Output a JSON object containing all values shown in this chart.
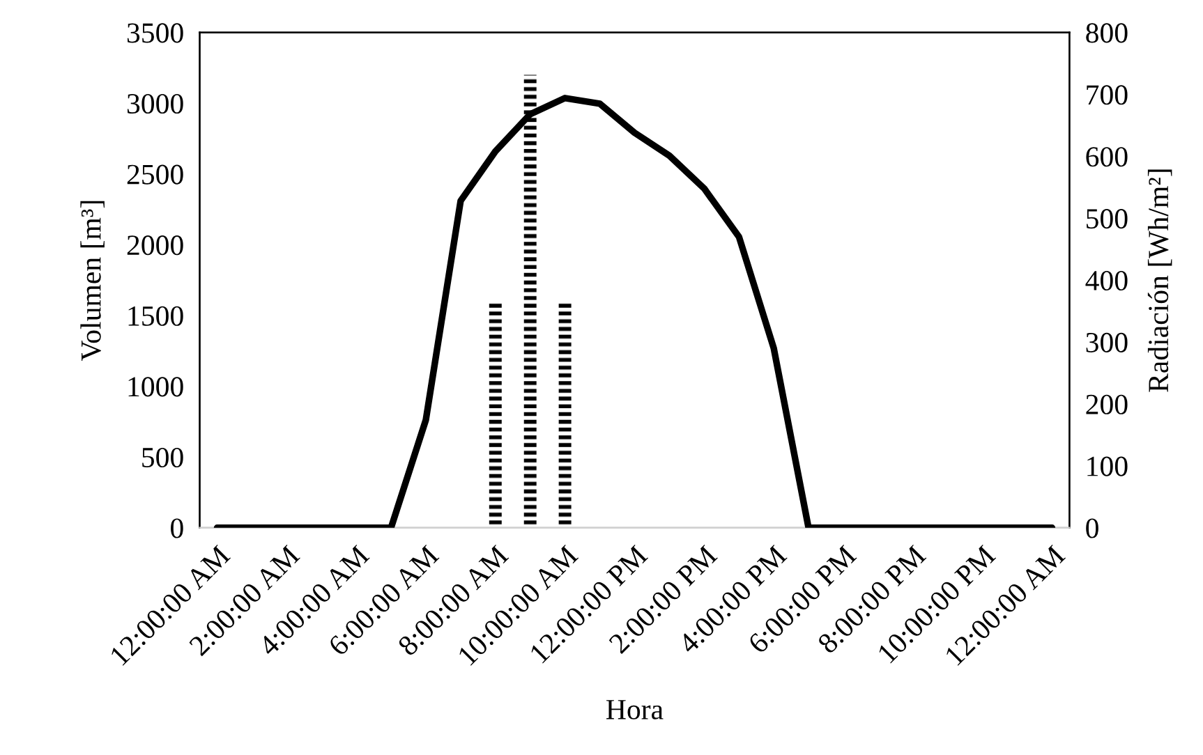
{
  "chart_data": {
    "type": "bar",
    "xlabel": "Hora",
    "ylabel": "Volumen [m³]",
    "y2label": "Radiación [Wh/m²]",
    "categories": [
      "12:00:00 AM",
      null,
      "2:00:00 AM",
      null,
      "4:00:00 AM",
      null,
      "6:00:00 AM",
      null,
      "8:00:00 AM",
      null,
      "10:00:00 AM",
      null,
      "12:00:00 PM",
      null,
      "2:00:00 PM",
      null,
      "4:00:00 PM",
      null,
      "6:00:00 PM",
      null,
      "8:00:00 PM",
      null,
      "10:00:00 PM",
      null,
      "12:00:00 AM"
    ],
    "ylim": [
      0,
      3500
    ],
    "yticks": [
      0,
      500,
      1000,
      1500,
      2000,
      2500,
      3000,
      3500
    ],
    "y2lim": [
      0,
      800
    ],
    "y2ticks": [
      0,
      100,
      200,
      300,
      400,
      500,
      600,
      700,
      800
    ],
    "grid": false,
    "legend": false,
    "series": [
      {
        "color": "#000000",
        "values": [
          null,
          null,
          null,
          null,
          null,
          null,
          null,
          null,
          1600,
          3200,
          1600,
          null,
          null,
          null,
          null,
          null,
          null,
          null,
          null,
          null,
          null,
          null,
          null,
          null,
          null
        ]
      },
      {
        "type": "line",
        "axis": "y2",
        "color": "#000000",
        "line_style": "solid",
        "marker": "none",
        "values": [
          0,
          0,
          0,
          0,
          0,
          0,
          174,
          528,
          608,
          668,
          694,
          685,
          638,
          601,
          548,
          470,
          290,
          0,
          0,
          0,
          0,
          0,
          0,
          0,
          0
        ]
      }
    ]
  }
}
